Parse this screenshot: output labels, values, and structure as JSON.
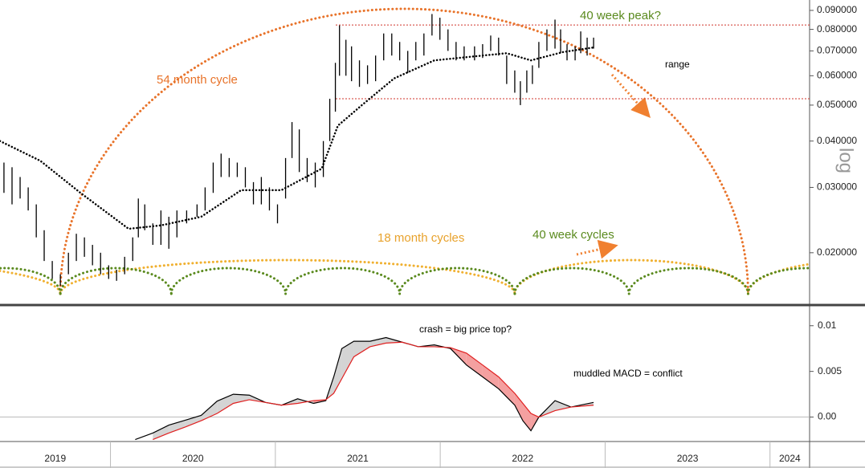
{
  "chart_data": [
    {
      "type": "range",
      "log_scale": true,
      "y_label": "log",
      "color": "#000000",
      "xlim": [
        2019.33,
        2024.24
      ],
      "ylim": [
        0.0146,
        0.096
      ],
      "yticks": [
        {
          "value": 0.02,
          "label": "0.020000"
        },
        {
          "value": 0.03,
          "label": "0.030000"
        },
        {
          "value": 0.04,
          "label": "0.040000"
        },
        {
          "value": 0.05,
          "label": "0.050000"
        },
        {
          "value": 0.06,
          "label": "0.060000"
        },
        {
          "value": 0.07,
          "label": "0.070000"
        },
        {
          "value": 0.08,
          "label": "0.080000"
        },
        {
          "value": 0.09,
          "label": "0.090000"
        }
      ],
      "x": [
        2019.354,
        2019.403,
        2019.452,
        2019.501,
        2019.55,
        2019.598,
        2019.647,
        2019.696,
        2019.745,
        2019.793,
        2019.842,
        2019.891,
        2019.94,
        2019.989,
        2020.037,
        2020.086,
        2020.135,
        2020.169,
        2020.208,
        2020.257,
        2020.306,
        2020.354,
        2020.403,
        2020.462,
        2020.525,
        2020.574,
        2020.623,
        2020.671,
        2020.72,
        2020.769,
        2020.818,
        2020.867,
        2020.915,
        2020.964,
        2021.013,
        2021.062,
        2021.101,
        2021.145,
        2021.193,
        2021.242,
        2021.291,
        2021.33,
        2021.364,
        2021.389,
        2021.428,
        2021.462,
        2021.51,
        2021.559,
        2021.608,
        2021.657,
        2021.706,
        2021.754,
        2021.803,
        2021.852,
        2021.901,
        2021.95,
        2021.998,
        2022.047,
        2022.096,
        2022.145,
        2022.208,
        2022.257,
        2022.306,
        2022.354,
        2022.403,
        2022.452,
        2022.486,
        2022.525,
        2022.559,
        2022.598,
        2022.647,
        2022.696,
        2022.73,
        2022.769,
        2022.818,
        2022.852,
        2022.891,
        2022.93
      ],
      "high": [
        0.035,
        0.034,
        0.032,
        0.03,
        0.027,
        0.023,
        0.019,
        0.0175,
        0.02,
        0.0225,
        0.022,
        0.021,
        0.02,
        0.0185,
        0.018,
        0.0195,
        0.022,
        0.028,
        0.027,
        0.024,
        0.026,
        0.025,
        0.026,
        0.026,
        0.027,
        0.03,
        0.035,
        0.037,
        0.036,
        0.035,
        0.034,
        0.031,
        0.032,
        0.03,
        0.027,
        0.036,
        0.045,
        0.043,
        0.036,
        0.035,
        0.04,
        0.052,
        0.065,
        0.082,
        0.075,
        0.072,
        0.066,
        0.064,
        0.068,
        0.078,
        0.078,
        0.074,
        0.07,
        0.074,
        0.078,
        0.088,
        0.086,
        0.08,
        0.074,
        0.072,
        0.072,
        0.073,
        0.077,
        0.076,
        0.068,
        0.062,
        0.058,
        0.062,
        0.064,
        0.074,
        0.08,
        0.085,
        0.08,
        0.073,
        0.072,
        0.079,
        0.076,
        0.076
      ],
      "low": [
        0.029,
        0.027,
        0.028,
        0.026,
        0.022,
        0.019,
        0.017,
        0.0163,
        0.0175,
        0.019,
        0.0195,
        0.0185,
        0.0175,
        0.017,
        0.0168,
        0.0175,
        0.019,
        0.022,
        0.023,
        0.021,
        0.021,
        0.0205,
        0.022,
        0.024,
        0.025,
        0.026,
        0.029,
        0.032,
        0.032,
        0.032,
        0.03,
        0.027,
        0.027,
        0.026,
        0.024,
        0.028,
        0.036,
        0.033,
        0.031,
        0.03,
        0.032,
        0.04,
        0.048,
        0.06,
        0.06,
        0.058,
        0.056,
        0.057,
        0.058,
        0.066,
        0.068,
        0.066,
        0.061,
        0.066,
        0.068,
        0.077,
        0.075,
        0.07,
        0.066,
        0.066,
        0.066,
        0.067,
        0.07,
        0.068,
        0.057,
        0.054,
        0.05,
        0.054,
        0.057,
        0.063,
        0.07,
        0.071,
        0.069,
        0.066,
        0.066,
        0.069,
        0.068,
        0.071
      ],
      "moving_average": {
        "color": "#000000",
        "x": [
          2019.33,
          2019.574,
          2019.818,
          2020.11,
          2020.306,
          2020.55,
          2020.793,
          2021.037,
          2021.281,
          2021.379,
          2021.525,
          2021.72,
          2021.964,
          2022.257,
          2022.403,
          2022.55,
          2022.745,
          2022.93
        ],
        "values": [
          0.04,
          0.0354,
          0.029,
          0.0232,
          0.0237,
          0.025,
          0.0295,
          0.0295,
          0.0337,
          0.044,
          0.05,
          0.059,
          0.066,
          0.068,
          0.069,
          0.066,
          0.0695,
          0.0715
        ]
      },
      "hlines": [
        0.0822,
        0.052
      ],
      "hline_color": "#d0352b",
      "cycles": [
        {
          "color": "#e8732a",
          "lows": [
            2019.696,
            2023.867
          ]
        },
        {
          "color": "#f0b030",
          "lows": [
            2019.696,
            2022.452,
            2023.867
          ]
        },
        {
          "color": "#5a8a1e",
          "lows": [
            2019.696,
            2020.369,
            2021.062,
            2021.754,
            2022.452,
            2023.145,
            2023.867
          ]
        }
      ],
      "annotations": [
        {
          "text": "54 month cycle",
          "color": "#e8732a"
        },
        {
          "text": "18 month cycles",
          "color": "#e8a22c"
        },
        {
          "text": "40 week cycles",
          "color": "#5a8a1e"
        },
        {
          "text": "40 week peak?",
          "color": "#5a8a1e"
        },
        {
          "text": "range",
          "color": "#000000"
        }
      ]
    },
    {
      "type": "line",
      "xlim": [
        2019.33,
        2024.24
      ],
      "ylim": [
        -0.0025,
        0.012
      ],
      "xticks": [
        2019,
        2020,
        2021,
        2022,
        2023,
        2024
      ],
      "yticks": [
        {
          "value": 0,
          "label": "0.00"
        },
        0.005,
        0.01
      ],
      "hlines": [
        0
      ],
      "x": [
        2020.15,
        2020.257,
        2020.354,
        2020.452,
        2020.55,
        2020.647,
        2020.745,
        2020.842,
        2020.94,
        2021.037,
        2021.135,
        2021.232,
        2021.306,
        2021.354,
        2021.403,
        2021.476,
        2021.574,
        2021.671,
        2021.769,
        2021.867,
        2021.964,
        2022.062,
        2022.159,
        2022.257,
        2022.354,
        2022.452,
        2022.501,
        2022.55,
        2022.598,
        2022.696,
        2022.793,
        2022.93
      ],
      "series": [
        {
          "color": "#000000",
          "values": [
            -0.00246,
            -0.00175,
            -0.00088,
            -0.00035,
            0.00018,
            0.00175,
            0.0025,
            0.0024,
            0.0016,
            0.0013,
            0.002,
            0.0015,
            0.0018,
            0.0044,
            0.0075,
            0.0083,
            0.0083,
            0.0087,
            0.0082,
            0.0077,
            0.0079,
            0.0075,
            0.0057,
            0.0044,
            0.0031,
            0.0013,
            -0.0004,
            -0.0015,
            0,
            0.0018,
            0.0011,
            0.0016
          ]
        },
        {
          "color": "#e02020",
          "values": [
            null,
            -0.00246,
            -0.00175,
            -0.0011,
            -0.0004,
            0.0004,
            0.0015,
            0.0019,
            0.0016,
            0.0013,
            0.0015,
            0.0018,
            0.0019,
            0.0026,
            0.0042,
            0.0066,
            0.0077,
            0.0081,
            0.0082,
            0.0077,
            0.0077,
            0.0076,
            0.007,
            0.0057,
            0.0044,
            0.0026,
            0.0015,
            0.0004,
            0,
            0.0007,
            0.0011,
            0.0013
          ]
        }
      ],
      "fill_colors": {
        "above": "#d4d4d4",
        "below": "#f4a0a0"
      },
      "annotations": [
        {
          "text": "crash = big price top?",
          "color": "#000000"
        },
        {
          "text": "muddled MACD = conflict",
          "color": "#000000"
        }
      ]
    }
  ]
}
